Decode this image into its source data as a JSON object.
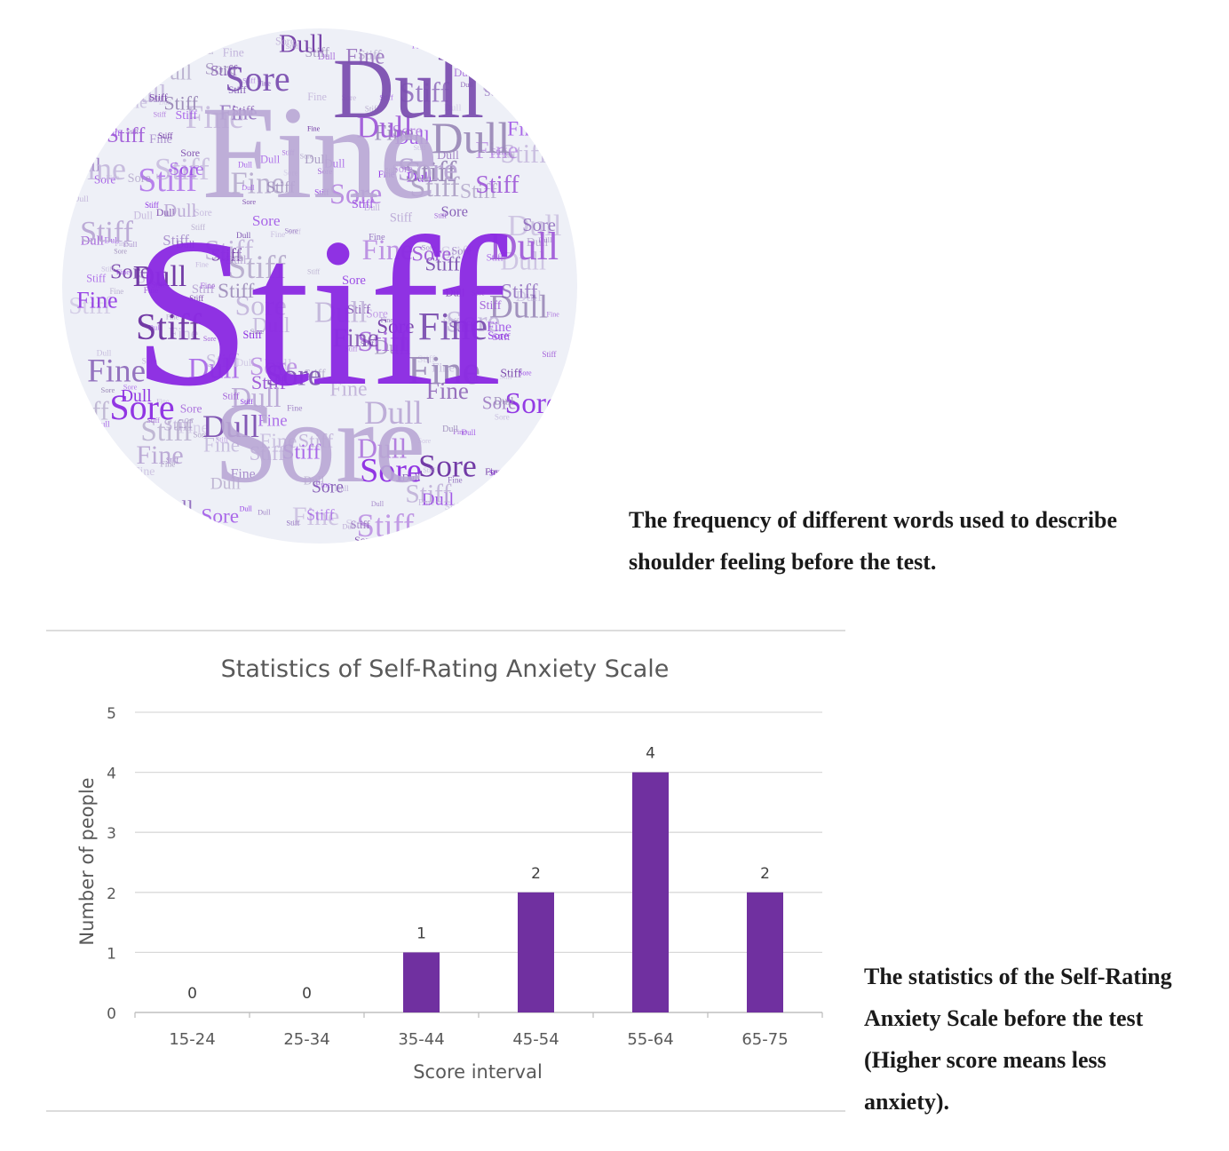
{
  "wordcloud": {
    "words": [
      "Stiff",
      "Sore",
      "Fine",
      "Dull"
    ],
    "colors": [
      "#8b2be2",
      "#a05cd8",
      "#7b4fb0",
      "#b8a6d4",
      "#9b8ab8",
      "#c4b8dc",
      "#6a2fa0"
    ],
    "background": "#eef0f7"
  },
  "captions": {
    "cloud": "The frequency of different words used to describe shoulder feeling before the test.",
    "chart": "The statistics of the Self-Rating Anxiety Scale before the test (Higher score means less anxiety)."
  },
  "chart_data": {
    "type": "bar",
    "title": "Statistics of Self-Rating Anxiety Scale",
    "xlabel": "Score interval",
    "ylabel": "Number of people",
    "categories": [
      "15-24",
      "25-34",
      "35-44",
      "45-54",
      "55-64",
      "65-75"
    ],
    "values": [
      0,
      0,
      1,
      2,
      4,
      2
    ],
    "data_labels": [
      "0",
      "0",
      "1",
      "2",
      "4",
      "2"
    ],
    "ylim": [
      0,
      5
    ],
    "yticks": [
      "0",
      "1",
      "2",
      "3",
      "4",
      "5"
    ],
    "grid": true,
    "legend": "none",
    "bar_color": "#7030a0"
  }
}
